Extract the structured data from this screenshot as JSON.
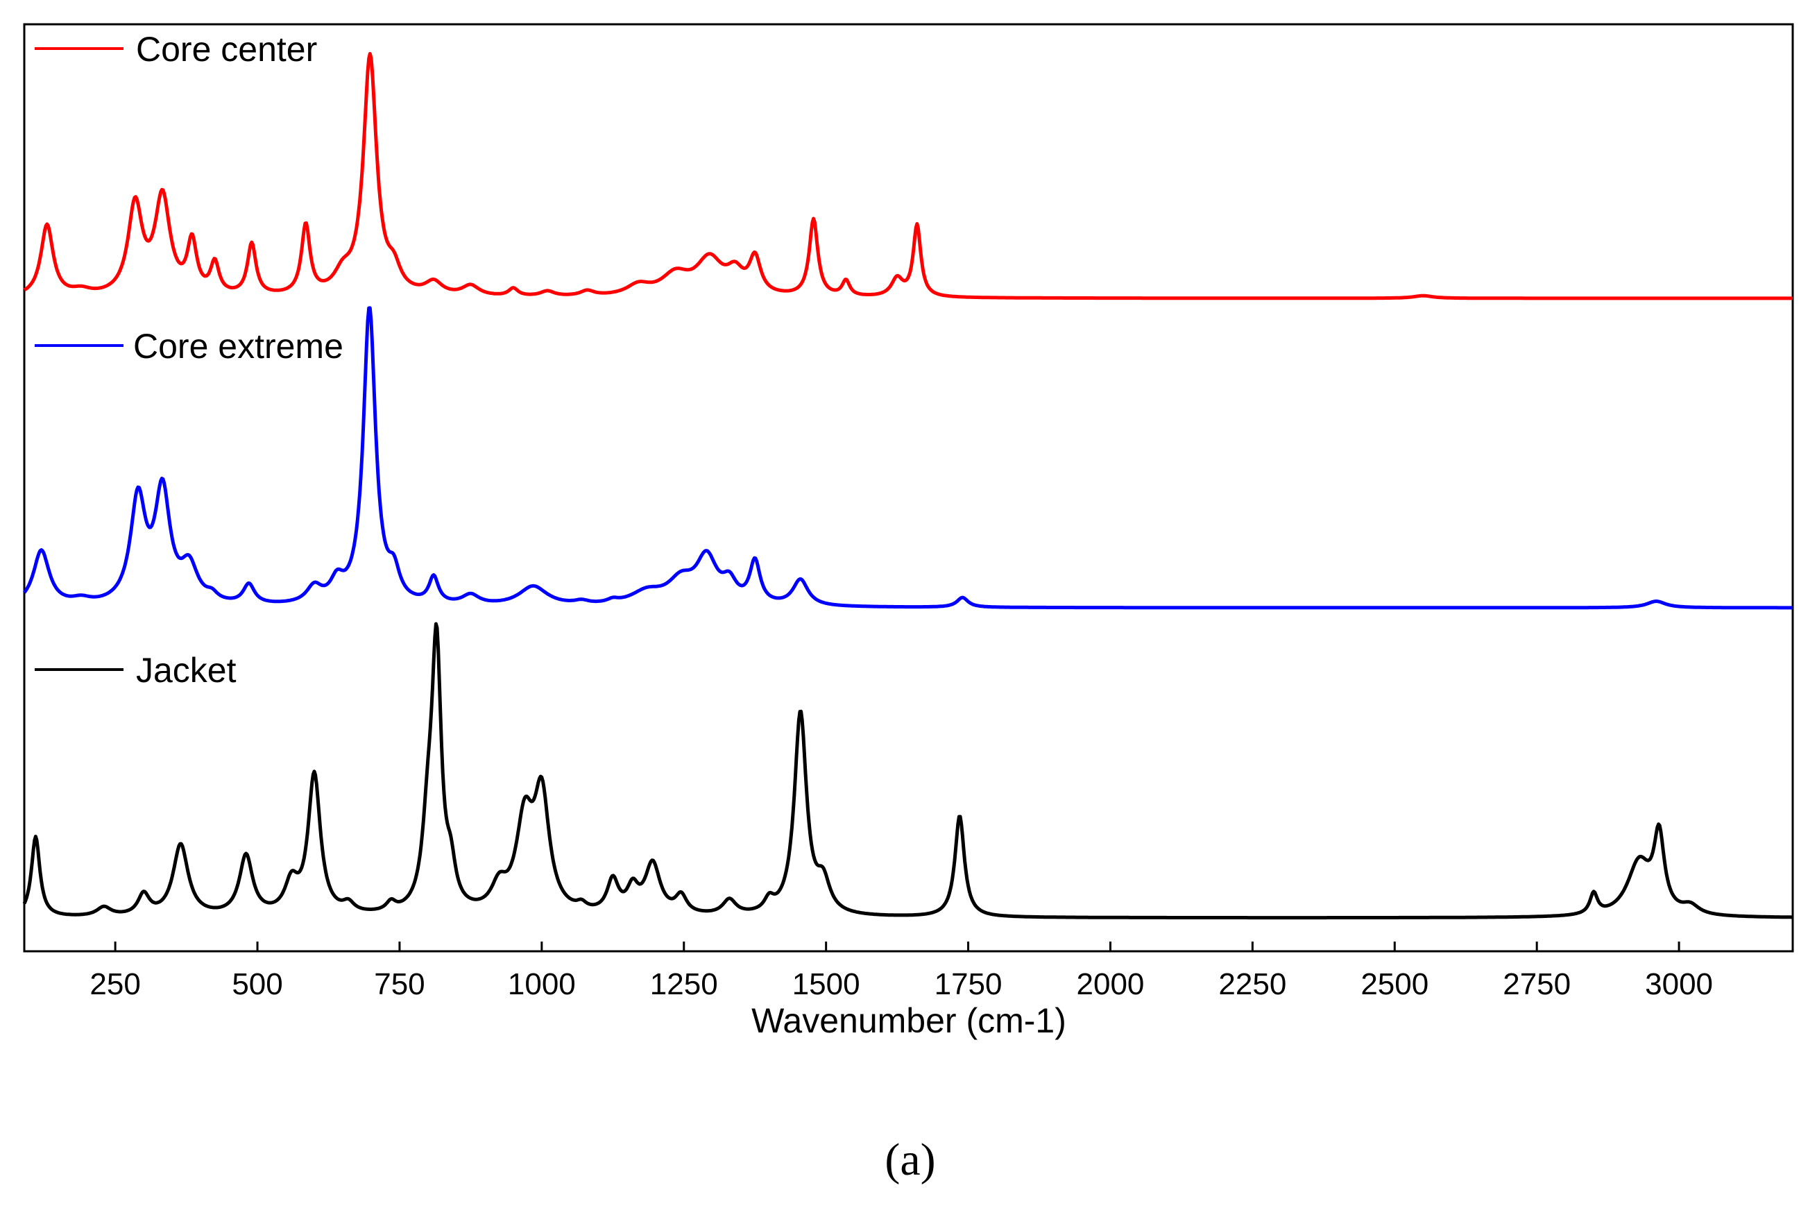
{
  "chart_data": {
    "type": "line",
    "title": "",
    "xlabel": "Wavenumber (cm-1)",
    "ylabel": "",
    "xlim": [
      90,
      3200
    ],
    "x_ticks": [
      250,
      500,
      750,
      1000,
      1250,
      1500,
      1750,
      2000,
      2250,
      2500,
      2750,
      3000
    ],
    "x_tick_labels": [
      "250",
      "500",
      "750",
      "1000",
      "1250",
      "1500",
      "1750",
      "2000",
      "2250",
      "2500",
      "2750",
      "3000"
    ],
    "y_axis": "offset stacked spectra, relative intensity (0-100), no y tick labels",
    "grid": false,
    "series": [
      {
        "name": "Core center",
        "color": "#ff0000",
        "baseline": 0,
        "peaks": [
          {
            "x": 130,
            "height": 28,
            "width": 13
          },
          {
            "x": 190,
            "height": 2,
            "width": 20
          },
          {
            "x": 285,
            "height": 35,
            "width": 15
          },
          {
            "x": 333,
            "height": 38,
            "width": 16
          },
          {
            "x": 385,
            "height": 20,
            "width": 10
          },
          {
            "x": 425,
            "height": 12,
            "width": 9
          },
          {
            "x": 490,
            "height": 20,
            "width": 9
          },
          {
            "x": 585,
            "height": 27,
            "width": 9
          },
          {
            "x": 650,
            "height": 7,
            "width": 18
          },
          {
            "x": 698,
            "height": 93,
            "width": 14
          },
          {
            "x": 740,
            "height": 8,
            "width": 14
          },
          {
            "x": 810,
            "height": 5,
            "width": 18
          },
          {
            "x": 875,
            "height": 4,
            "width": 18
          },
          {
            "x": 950,
            "height": 3,
            "width": 10
          },
          {
            "x": 1010,
            "height": 2,
            "width": 15
          },
          {
            "x": 1080,
            "height": 2,
            "width": 15
          },
          {
            "x": 1170,
            "height": 4,
            "width": 25
          },
          {
            "x": 1235,
            "height": 8,
            "width": 30
          },
          {
            "x": 1295,
            "height": 14,
            "width": 28
          },
          {
            "x": 1340,
            "height": 8,
            "width": 18
          },
          {
            "x": 1375,
            "height": 14,
            "width": 12
          },
          {
            "x": 1478,
            "height": 30,
            "width": 9
          },
          {
            "x": 1535,
            "height": 6,
            "width": 8
          },
          {
            "x": 1625,
            "height": 7,
            "width": 12
          },
          {
            "x": 1660,
            "height": 28,
            "width": 8
          },
          {
            "x": 2550,
            "height": 1,
            "width": 20
          }
        ]
      },
      {
        "name": "Core extreme",
        "color": "#0000ff",
        "baseline": 0,
        "peaks": [
          {
            "x": 120,
            "height": 17,
            "width": 17
          },
          {
            "x": 190,
            "height": 1.5,
            "width": 20
          },
          {
            "x": 290,
            "height": 32,
            "width": 16
          },
          {
            "x": 333,
            "height": 34,
            "width": 16
          },
          {
            "x": 380,
            "height": 11,
            "width": 18
          },
          {
            "x": 420,
            "height": 2,
            "width": 12
          },
          {
            "x": 485,
            "height": 6,
            "width": 12
          },
          {
            "x": 600,
            "height": 5,
            "width": 16
          },
          {
            "x": 640,
            "height": 6,
            "width": 14
          },
          {
            "x": 697,
            "height": 91,
            "width": 13
          },
          {
            "x": 740,
            "height": 8,
            "width": 12
          },
          {
            "x": 810,
            "height": 8,
            "width": 10
          },
          {
            "x": 875,
            "height": 3,
            "width": 18
          },
          {
            "x": 985,
            "height": 6,
            "width": 30
          },
          {
            "x": 1070,
            "height": 1,
            "width": 15
          },
          {
            "x": 1125,
            "height": 1,
            "width": 12
          },
          {
            "x": 1185,
            "height": 4,
            "width": 35
          },
          {
            "x": 1245,
            "height": 7,
            "width": 28
          },
          {
            "x": 1290,
            "height": 14,
            "width": 22
          },
          {
            "x": 1330,
            "height": 6,
            "width": 15
          },
          {
            "x": 1375,
            "height": 13,
            "width": 11
          },
          {
            "x": 1455,
            "height": 8,
            "width": 16
          },
          {
            "x": 1740,
            "height": 3,
            "width": 12
          },
          {
            "x": 2960,
            "height": 2,
            "width": 20
          }
        ]
      },
      {
        "name": "Jacket",
        "color": "#000000",
        "baseline": 0,
        "peaks": [
          {
            "x": 110,
            "height": 27,
            "width": 9
          },
          {
            "x": 230,
            "height": 3,
            "width": 15
          },
          {
            "x": 300,
            "height": 7,
            "width": 12
          },
          {
            "x": 365,
            "height": 24,
            "width": 16
          },
          {
            "x": 480,
            "height": 20,
            "width": 14
          },
          {
            "x": 560,
            "height": 10,
            "width": 14
          },
          {
            "x": 600,
            "height": 47,
            "width": 13
          },
          {
            "x": 660,
            "height": 3,
            "width": 12
          },
          {
            "x": 735,
            "height": 3,
            "width": 10
          },
          {
            "x": 800,
            "height": 25,
            "width": 12
          },
          {
            "x": 815,
            "height": 86,
            "width": 10
          },
          {
            "x": 840,
            "height": 12,
            "width": 10
          },
          {
            "x": 925,
            "height": 8,
            "width": 16
          },
          {
            "x": 970,
            "height": 30,
            "width": 18
          },
          {
            "x": 1000,
            "height": 38,
            "width": 16
          },
          {
            "x": 1070,
            "height": 2,
            "width": 10
          },
          {
            "x": 1125,
            "height": 11,
            "width": 12
          },
          {
            "x": 1160,
            "height": 8,
            "width": 12
          },
          {
            "x": 1195,
            "height": 17,
            "width": 16
          },
          {
            "x": 1245,
            "height": 6,
            "width": 12
          },
          {
            "x": 1330,
            "height": 5,
            "width": 14
          },
          {
            "x": 1400,
            "height": 4,
            "width": 10
          },
          {
            "x": 1455,
            "height": 68,
            "width": 13
          },
          {
            "x": 1495,
            "height": 10,
            "width": 14
          },
          {
            "x": 1735,
            "height": 34,
            "width": 10
          },
          {
            "x": 2850,
            "height": 7,
            "width": 8
          },
          {
            "x": 2930,
            "height": 18,
            "width": 25
          },
          {
            "x": 2965,
            "height": 25,
            "width": 11
          },
          {
            "x": 3020,
            "height": 3,
            "width": 18
          }
        ]
      }
    ]
  },
  "caption": "(a)"
}
